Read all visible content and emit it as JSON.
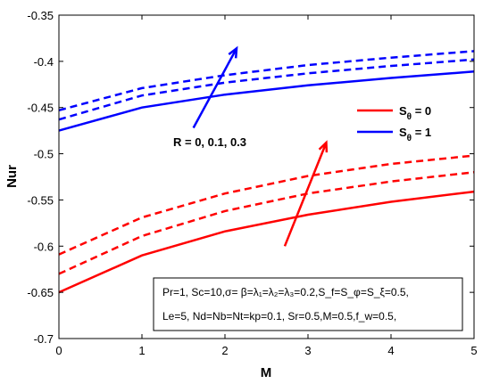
{
  "chart_data": {
    "type": "line",
    "title": "",
    "xlabel": "M",
    "ylabel": "Nur",
    "xlim": [
      0,
      5
    ],
    "ylim": [
      -0.7,
      -0.35
    ],
    "xticks": [
      0,
      1,
      2,
      3,
      4,
      5
    ],
    "yticks": [
      -0.7,
      -0.65,
      -0.6,
      -0.55,
      -0.5,
      -0.45,
      -0.4,
      -0.35
    ],
    "xtick_labels": [
      "0",
      "1",
      "2",
      "3",
      "4",
      "5"
    ],
    "ytick_labels": [
      "-0.7",
      "-0.65",
      "-0.6",
      "-0.55",
      "-0.5",
      "-0.45",
      "-0.4",
      "-0.35"
    ],
    "grid": false,
    "legend_position": "upper-right",
    "x": [
      0,
      1,
      2,
      3,
      4,
      5
    ],
    "series": [
      {
        "group": "S_theta=0",
        "color": "#ff0000",
        "style": "solid",
        "values": [
          -0.65,
          -0.61,
          -0.584,
          -0.566,
          -0.552,
          -0.541
        ]
      },
      {
        "group": "S_theta=0",
        "color": "#ff0000",
        "style": "dashed",
        "values": [
          -0.63,
          -0.589,
          -0.562,
          -0.543,
          -0.53,
          -0.52
        ]
      },
      {
        "group": "S_theta=0",
        "color": "#ff0000",
        "style": "dashed",
        "values": [
          -0.609,
          -0.569,
          -0.543,
          -0.524,
          -0.511,
          -0.502
        ]
      },
      {
        "group": "S_theta=1",
        "color": "#0000ff",
        "style": "solid",
        "values": [
          -0.475,
          -0.45,
          -0.436,
          -0.426,
          -0.418,
          -0.411
        ]
      },
      {
        "group": "S_theta=1",
        "color": "#0000ff",
        "style": "dashed",
        "values": [
          -0.463,
          -0.437,
          -0.423,
          -0.413,
          -0.405,
          -0.398
        ]
      },
      {
        "group": "S_theta=1",
        "color": "#0000ff",
        "style": "dashed",
        "values": [
          -0.453,
          -0.429,
          -0.415,
          -0.404,
          -0.396,
          -0.389
        ]
      }
    ],
    "legend": [
      {
        "label": "S",
        "sub": "θ",
        "rest": " = 0",
        "color": "#ff0000"
      },
      {
        "label": "S",
        "sub": "θ",
        "rest": " = 1",
        "color": "#0000ff"
      }
    ],
    "annotations": {
      "blue_label": "R = 0, 0.1, 0.3",
      "blue_arrow": {
        "from": [
          1.62,
          -0.472
        ],
        "to": [
          2.14,
          -0.386
        ],
        "color": "#0000ff"
      },
      "red_arrow": {
        "from": [
          2.72,
          -0.6
        ],
        "to": [
          3.22,
          -0.488
        ],
        "color": "#ff0000"
      }
    },
    "parameter_box": {
      "line1": "Pr=1, Sc=10,σ= β=λ₁=λ₂=λ₃=0.2,S_f=S_φ=S_ξ=0.5,",
      "line2": "Le=5, Nd=Nb=Nt=kp=0.1, Sr=0.5,M=0.5,f_w=0.5,"
    }
  }
}
